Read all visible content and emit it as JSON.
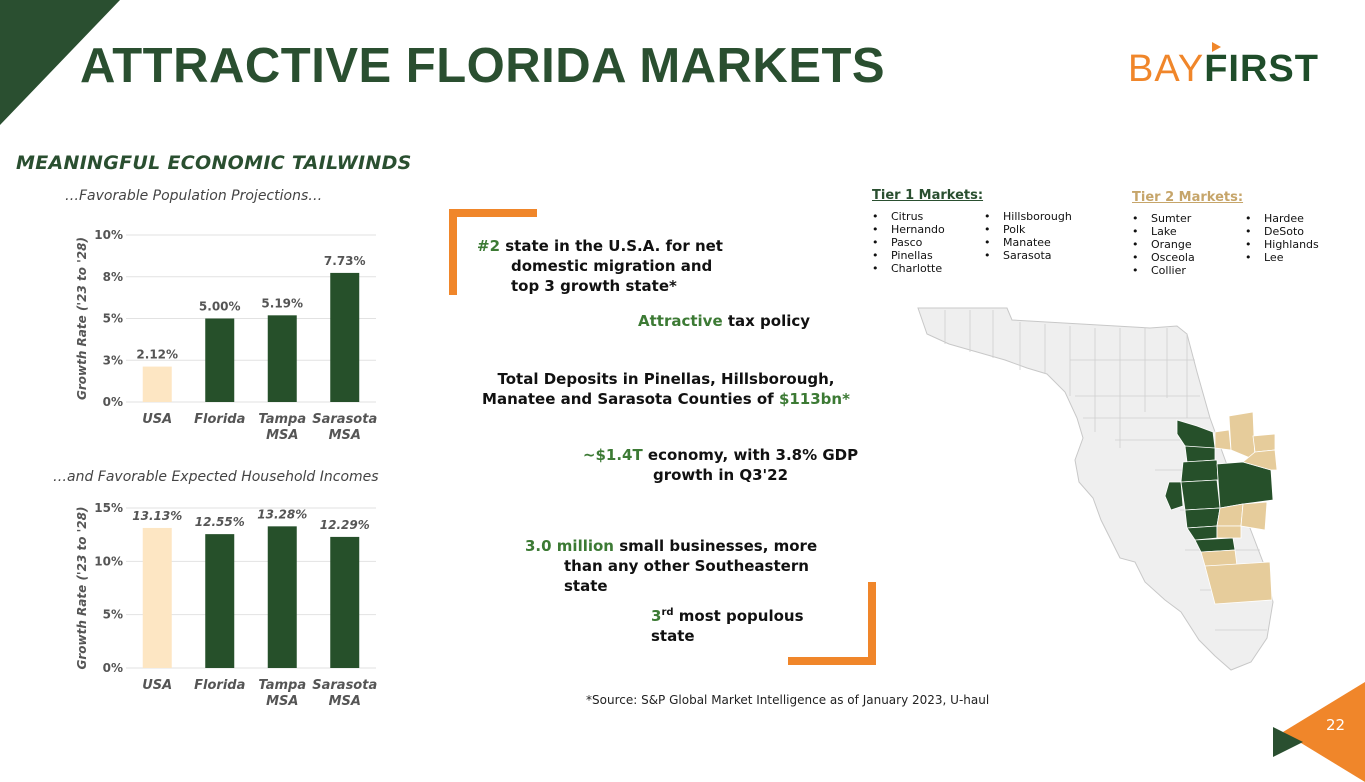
{
  "slide": {
    "title": "ATTRACTIVE FLORIDA MARKETS",
    "logo": {
      "part1": "BAY",
      "part2": "FIRST"
    },
    "subtitle": "MEANINGFUL ECONOMIC TAILWINDS",
    "page_number": "22",
    "footnote": "*Source: S&P Global Market Intelligence as of January 2023, U-haul",
    "colors": {
      "dark_green": "#2a4f30",
      "accent_green": "#3c7a34",
      "orange": "#f0862a",
      "usa_bar": "#fde6c3",
      "tier2": "#c6a56a"
    }
  },
  "chart_data": [
    {
      "type": "bar",
      "title": "…Favorable Population Projections…",
      "ylabel": "Growth Rate ('23 to '28)",
      "categories": [
        "USA",
        "Florida",
        "Tampa MSA",
        "Sarasota MSA"
      ],
      "category_lines": [
        [
          "USA"
        ],
        [
          "Florida"
        ],
        [
          "Tampa",
          "MSA"
        ],
        [
          "Sarasota",
          "MSA"
        ]
      ],
      "values": [
        2.12,
        5.0,
        5.19,
        7.73
      ],
      "value_labels": [
        "2.12%",
        "5.00%",
        "5.19%",
        "7.73%"
      ],
      "y_ticks": [
        0,
        2.5,
        5,
        7.5,
        10
      ],
      "y_tick_labels": [
        "0%",
        "3%",
        "5%",
        "8%",
        "10%"
      ],
      "ylim": [
        0,
        10
      ],
      "bar_colors": [
        "#fde6c3",
        "#26502a",
        "#26502a",
        "#26502a"
      ],
      "label_italic": false,
      "grid": true
    },
    {
      "type": "bar",
      "title": "…and Favorable Expected Household Incomes",
      "ylabel": "Growth Rate ('23 to '28)",
      "categories": [
        "USA",
        "Florida",
        "Tampa MSA",
        "Sarasota MSA"
      ],
      "category_lines": [
        [
          "USA"
        ],
        [
          "Florida"
        ],
        [
          "Tampa",
          "MSA"
        ],
        [
          "Sarasota",
          "MSA"
        ]
      ],
      "values": [
        13.13,
        12.55,
        13.28,
        12.29
      ],
      "value_labels": [
        "13.13%",
        "12.55%",
        "13.28%",
        "12.29%"
      ],
      "y_ticks": [
        0,
        5,
        10,
        15
      ],
      "y_tick_labels": [
        "0%",
        "5%",
        "10%",
        "15%"
      ],
      "ylim": [
        0,
        15
      ],
      "bar_colors": [
        "#fde6c3",
        "#26502a",
        "#26502a",
        "#26502a"
      ],
      "label_italic": true,
      "grid": true
    }
  ],
  "statements": {
    "migration": {
      "highlight": "#2",
      "line1": " state in the U.S.A. for net",
      "line2": "domestic migration and",
      "line3": "top 3 growth state*"
    },
    "tax": {
      "highlight": "Attractive",
      "rest": " tax policy"
    },
    "deposits": {
      "line1": "Total Deposits in Pinellas, Hillsborough,",
      "line2": "Manatee and Sarasota Counties of ",
      "highlight": "$113bn*"
    },
    "economy": {
      "highlight": "~$1.4T",
      "line1": " economy, with 3.8% GDP",
      "line2": "growth in Q3'22"
    },
    "businesses": {
      "highlight": "3.0 million",
      "line1": " small businesses, more",
      "line2": "than any other Southeastern",
      "line3": "state"
    },
    "populous": {
      "highlight": "3",
      "sup": "rd",
      "line1": " most populous",
      "line2": "state"
    }
  },
  "tiers": {
    "tier1": {
      "title": "Tier 1 Markets:",
      "col1": [
        "Citrus",
        "Hernando",
        "Pasco",
        "Pinellas",
        "Charlotte"
      ],
      "col2": [
        "Hillsborough",
        "Polk",
        "Manatee",
        "Sarasota"
      ]
    },
    "tier2": {
      "title": "Tier 2 Markets:",
      "col1": [
        "Sumter",
        "Lake",
        "Orange",
        "Osceola",
        "Collier"
      ],
      "col2": [
        "Hardee",
        "DeSoto",
        "Highlands",
        "Lee"
      ]
    }
  },
  "map": {
    "icon": "florida-county-map",
    "tier1_color": "#26502a",
    "tier2_color": "#e6cc9b",
    "base_color": "#efefef"
  }
}
